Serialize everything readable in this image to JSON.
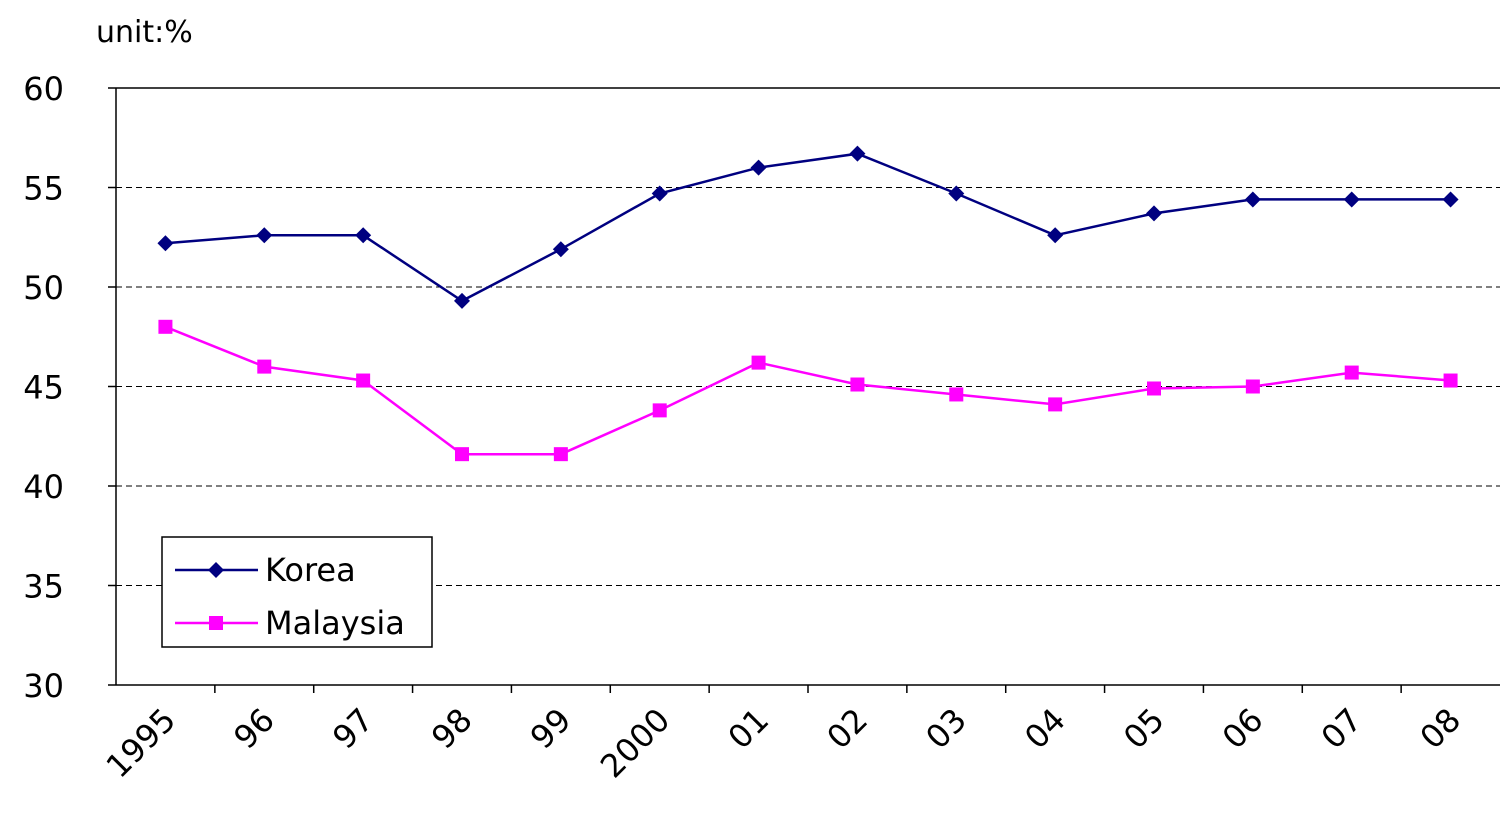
{
  "chart_data": {
    "type": "line",
    "unit_label": "unit:%",
    "categories": [
      "1995",
      "96",
      "97",
      "98",
      "99",
      "2000",
      "01",
      "02",
      "03",
      "04",
      "05",
      "06",
      "07",
      "08"
    ],
    "ylim": [
      30,
      60
    ],
    "yticks": [
      "30",
      "35",
      "40",
      "45",
      "50",
      "55",
      "60"
    ],
    "grid": "horizontal dashed",
    "legend_position": "bottom-left",
    "series": [
      {
        "name": "Korea",
        "color": "#000080",
        "marker": "diamond",
        "values": [
          52.2,
          52.6,
          52.6,
          49.3,
          51.9,
          54.7,
          56.0,
          56.7,
          54.7,
          52.6,
          53.7,
          54.4,
          54.4,
          54.4
        ]
      },
      {
        "name": "Malaysia",
        "color": "#ff00ff",
        "marker": "square",
        "values": [
          48.0,
          46.0,
          45.3,
          41.6,
          41.6,
          43.8,
          46.2,
          45.1,
          44.6,
          44.1,
          44.9,
          45.0,
          45.7,
          45.3
        ]
      }
    ]
  }
}
